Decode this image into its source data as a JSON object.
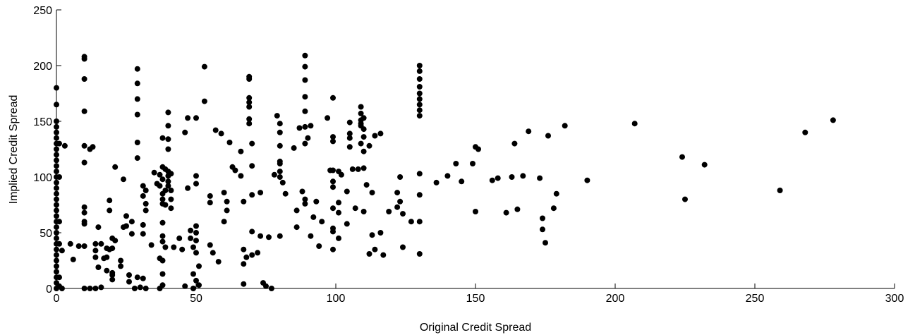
{
  "chart_data": {
    "type": "scatter",
    "title": "",
    "xlabel": "Original Credit Spread",
    "ylabel": "Implied Credit Spread",
    "xlim": [
      0,
      300
    ],
    "ylim": [
      0,
      250
    ],
    "xticks": [
      "0",
      "50",
      "100",
      "150",
      "200",
      "250",
      "300"
    ],
    "yticks": [
      "0",
      "50",
      "100",
      "150",
      "200",
      "250"
    ],
    "grid": false,
    "marker_color": "#000000",
    "points": [
      [
        0,
        180
      ],
      [
        0,
        165
      ],
      [
        0,
        150
      ],
      [
        0,
        145
      ],
      [
        0,
        140
      ],
      [
        0,
        135
      ],
      [
        0,
        130
      ],
      [
        0,
        125
      ],
      [
        0,
        120
      ],
      [
        0,
        115
      ],
      [
        0,
        110
      ],
      [
        0,
        105
      ],
      [
        0,
        100
      ],
      [
        0,
        95
      ],
      [
        0,
        90
      ],
      [
        0,
        85
      ],
      [
        0,
        80
      ],
      [
        0,
        75
      ],
      [
        0,
        70
      ],
      [
        0,
        65
      ],
      [
        0,
        60
      ],
      [
        0,
        55
      ],
      [
        0,
        50
      ],
      [
        0,
        45
      ],
      [
        0,
        40
      ],
      [
        0,
        35
      ],
      [
        0,
        30
      ],
      [
        0,
        25
      ],
      [
        0,
        20
      ],
      [
        0,
        15
      ],
      [
        0,
        10
      ],
      [
        0,
        5
      ],
      [
        0,
        0
      ],
      [
        1,
        130
      ],
      [
        1,
        100
      ],
      [
        1,
        60
      ],
      [
        1,
        40
      ],
      [
        1,
        10
      ],
      [
        1,
        2
      ],
      [
        2,
        34
      ],
      [
        2,
        0
      ],
      [
        3,
        128
      ],
      [
        5,
        40
      ],
      [
        6,
        26
      ],
      [
        8,
        38
      ],
      [
        10,
        208
      ],
      [
        10,
        206
      ],
      [
        10,
        188
      ],
      [
        10,
        159
      ],
      [
        10,
        128
      ],
      [
        10,
        113
      ],
      [
        10,
        73
      ],
      [
        10,
        68
      ],
      [
        10,
        60
      ],
      [
        10,
        58
      ],
      [
        10,
        38
      ],
      [
        10,
        0
      ],
      [
        12,
        125
      ],
      [
        12,
        0
      ],
      [
        13,
        127
      ],
      [
        14,
        0
      ],
      [
        14,
        40
      ],
      [
        14,
        34
      ],
      [
        15,
        55
      ],
      [
        14,
        28
      ],
      [
        15,
        19
      ],
      [
        16,
        1
      ],
      [
        16,
        40
      ],
      [
        17,
        27
      ],
      [
        18,
        36
      ],
      [
        18,
        28
      ],
      [
        18,
        16
      ],
      [
        19,
        79
      ],
      [
        19,
        70
      ],
      [
        19,
        35
      ],
      [
        20,
        45
      ],
      [
        20,
        36
      ],
      [
        20,
        12
      ],
      [
        20,
        8
      ],
      [
        20,
        14
      ],
      [
        21,
        43
      ],
      [
        21,
        109
      ],
      [
        23,
        25
      ],
      [
        23,
        20
      ],
      [
        24,
        98
      ],
      [
        24,
        55
      ],
      [
        25,
        65
      ],
      [
        25,
        56
      ],
      [
        26,
        12
      ],
      [
        26,
        6
      ],
      [
        27,
        60
      ],
      [
        27,
        49
      ],
      [
        28,
        0
      ],
      [
        29,
        197
      ],
      [
        29,
        184
      ],
      [
        29,
        170
      ],
      [
        29,
        156
      ],
      [
        29,
        131
      ],
      [
        29,
        117
      ],
      [
        29,
        10
      ],
      [
        30,
        1
      ],
      [
        31,
        92
      ],
      [
        31,
        83
      ],
      [
        31,
        57
      ],
      [
        31,
        49
      ],
      [
        31,
        9
      ],
      [
        32,
        88
      ],
      [
        32,
        76
      ],
      [
        32,
        70
      ],
      [
        32,
        0
      ],
      [
        34,
        39
      ],
      [
        35,
        104
      ],
      [
        36,
        94
      ],
      [
        37,
        102
      ],
      [
        37,
        92
      ],
      [
        37,
        0
      ],
      [
        37,
        27
      ],
      [
        38,
        135
      ],
      [
        38,
        109
      ],
      [
        38,
        98
      ],
      [
        38,
        85
      ],
      [
        38,
        80
      ],
      [
        38,
        76
      ],
      [
        38,
        59
      ],
      [
        38,
        47
      ],
      [
        38,
        42
      ],
      [
        38,
        25
      ],
      [
        38,
        13
      ],
      [
        38,
        3
      ],
      [
        39,
        107
      ],
      [
        39,
        88
      ],
      [
        39,
        75
      ],
      [
        39,
        37
      ],
      [
        40,
        158
      ],
      [
        40,
        146
      ],
      [
        40,
        134
      ],
      [
        40,
        125
      ],
      [
        40,
        105
      ],
      [
        40,
        101
      ],
      [
        40,
        96
      ],
      [
        40,
        92
      ],
      [
        41,
        103
      ],
      [
        41,
        88
      ],
      [
        41,
        80
      ],
      [
        41,
        72
      ],
      [
        42,
        37
      ],
      [
        44,
        45
      ],
      [
        45,
        35
      ],
      [
        46,
        140
      ],
      [
        46,
        2
      ],
      [
        47,
        153
      ],
      [
        47,
        90
      ],
      [
        48,
        52
      ],
      [
        48,
        45
      ],
      [
        49,
        37
      ],
      [
        49,
        13
      ],
      [
        49,
        0
      ],
      [
        50,
        153
      ],
      [
        50,
        101
      ],
      [
        50,
        94
      ],
      [
        50,
        56
      ],
      [
        50,
        50
      ],
      [
        50,
        43
      ],
      [
        50,
        32
      ],
      [
        50,
        7
      ],
      [
        51,
        3
      ],
      [
        51,
        20
      ],
      [
        53,
        168
      ],
      [
        53,
        199
      ],
      [
        55,
        83
      ],
      [
        55,
        77
      ],
      [
        55,
        39
      ],
      [
        56,
        32
      ],
      [
        57,
        142
      ],
      [
        58,
        24
      ],
      [
        59,
        139
      ],
      [
        60,
        86
      ],
      [
        60,
        60
      ],
      [
        61,
        78
      ],
      [
        61,
        70
      ],
      [
        62,
        131
      ],
      [
        63,
        109
      ],
      [
        64,
        106
      ],
      [
        66,
        123
      ],
      [
        66,
        101
      ],
      [
        67,
        35
      ],
      [
        67,
        22
      ],
      [
        67,
        4
      ],
      [
        67,
        78
      ],
      [
        68,
        28
      ],
      [
        69,
        190
      ],
      [
        69,
        188
      ],
      [
        69,
        171
      ],
      [
        69,
        167
      ],
      [
        69,
        163
      ],
      [
        69,
        152
      ],
      [
        69,
        148
      ],
      [
        70,
        130
      ],
      [
        70,
        110
      ],
      [
        70,
        84
      ],
      [
        70,
        51
      ],
      [
        70,
        30
      ],
      [
        72,
        32
      ],
      [
        73,
        86
      ],
      [
        73,
        47
      ],
      [
        74,
        5
      ],
      [
        75,
        2
      ],
      [
        76,
        46
      ],
      [
        77,
        0
      ],
      [
        78,
        102
      ],
      [
        79,
        155
      ],
      [
        80,
        148
      ],
      [
        80,
        140
      ],
      [
        80,
        128
      ],
      [
        80,
        114
      ],
      [
        80,
        112
      ],
      [
        80,
        105
      ],
      [
        80,
        100
      ],
      [
        80,
        47
      ],
      [
        81,
        95
      ],
      [
        82,
        85
      ],
      [
        85,
        126
      ],
      [
        86,
        70
      ],
      [
        86,
        55
      ],
      [
        87,
        144
      ],
      [
        88,
        87
      ],
      [
        89,
        209
      ],
      [
        89,
        199
      ],
      [
        89,
        187
      ],
      [
        89,
        172
      ],
      [
        89,
        159
      ],
      [
        89,
        145
      ],
      [
        89,
        130
      ],
      [
        89,
        80
      ],
      [
        89,
        76
      ],
      [
        90,
        135
      ],
      [
        91,
        146
      ],
      [
        91,
        47
      ],
      [
        92,
        64
      ],
      [
        93,
        78
      ],
      [
        94,
        38
      ],
      [
        95,
        60
      ],
      [
        97,
        153
      ],
      [
        98,
        106
      ],
      [
        99,
        171
      ],
      [
        99,
        136
      ],
      [
        99,
        132
      ],
      [
        99,
        106
      ],
      [
        99,
        96
      ],
      [
        99,
        91
      ],
      [
        99,
        72
      ],
      [
        99,
        54
      ],
      [
        99,
        35
      ],
      [
        99,
        51
      ],
      [
        101,
        105
      ],
      [
        101,
        77
      ],
      [
        101,
        68
      ],
      [
        101,
        45
      ],
      [
        102,
        102
      ],
      [
        104,
        58
      ],
      [
        104,
        87
      ],
      [
        105,
        149
      ],
      [
        105,
        139
      ],
      [
        105,
        135
      ],
      [
        105,
        127
      ],
      [
        106,
        107
      ],
      [
        107,
        72
      ],
      [
        108,
        107
      ],
      [
        109,
        163
      ],
      [
        109,
        157
      ],
      [
        109,
        151
      ],
      [
        109,
        148
      ],
      [
        109,
        146
      ],
      [
        109,
        130
      ],
      [
        110,
        153
      ],
      [
        110,
        143
      ],
      [
        110,
        136
      ],
      [
        110,
        123
      ],
      [
        110,
        108
      ],
      [
        110,
        69
      ],
      [
        111,
        93
      ],
      [
        112,
        128
      ],
      [
        112,
        31
      ],
      [
        113,
        86
      ],
      [
        113,
        48
      ],
      [
        114,
        137
      ],
      [
        114,
        35
      ],
      [
        116,
        139
      ],
      [
        116,
        50
      ],
      [
        117,
        30
      ],
      [
        119,
        69
      ],
      [
        122,
        86
      ],
      [
        122,
        73
      ],
      [
        123,
        100
      ],
      [
        123,
        78
      ],
      [
        124,
        67
      ],
      [
        124,
        37
      ],
      [
        127,
        60
      ],
      [
        130,
        200
      ],
      [
        130,
        195
      ],
      [
        130,
        188
      ],
      [
        130,
        181
      ],
      [
        130,
        175
      ],
      [
        130,
        170
      ],
      [
        130,
        165
      ],
      [
        130,
        160
      ],
      [
        130,
        155
      ],
      [
        130,
        103
      ],
      [
        130,
        60
      ],
      [
        130,
        31
      ],
      [
        130,
        84
      ],
      [
        136,
        95
      ],
      [
        140,
        101
      ],
      [
        143,
        112
      ],
      [
        145,
        96
      ],
      [
        149,
        112
      ],
      [
        150,
        127
      ],
      [
        150,
        69
      ],
      [
        151,
        125
      ],
      [
        156,
        97
      ],
      [
        158,
        99
      ],
      [
        161,
        68
      ],
      [
        163,
        100
      ],
      [
        164,
        130
      ],
      [
        165,
        71
      ],
      [
        167,
        101
      ],
      [
        169,
        141
      ],
      [
        173,
        99
      ],
      [
        174,
        63
      ],
      [
        174,
        53
      ],
      [
        175,
        41
      ],
      [
        176,
        137
      ],
      [
        178,
        72
      ],
      [
        179,
        85
      ],
      [
        182,
        146
      ],
      [
        190,
        97
      ],
      [
        207,
        148
      ],
      [
        224,
        118
      ],
      [
        225,
        80
      ],
      [
        232,
        111
      ],
      [
        259,
        88
      ],
      [
        268,
        140
      ],
      [
        278,
        151
      ]
    ]
  }
}
